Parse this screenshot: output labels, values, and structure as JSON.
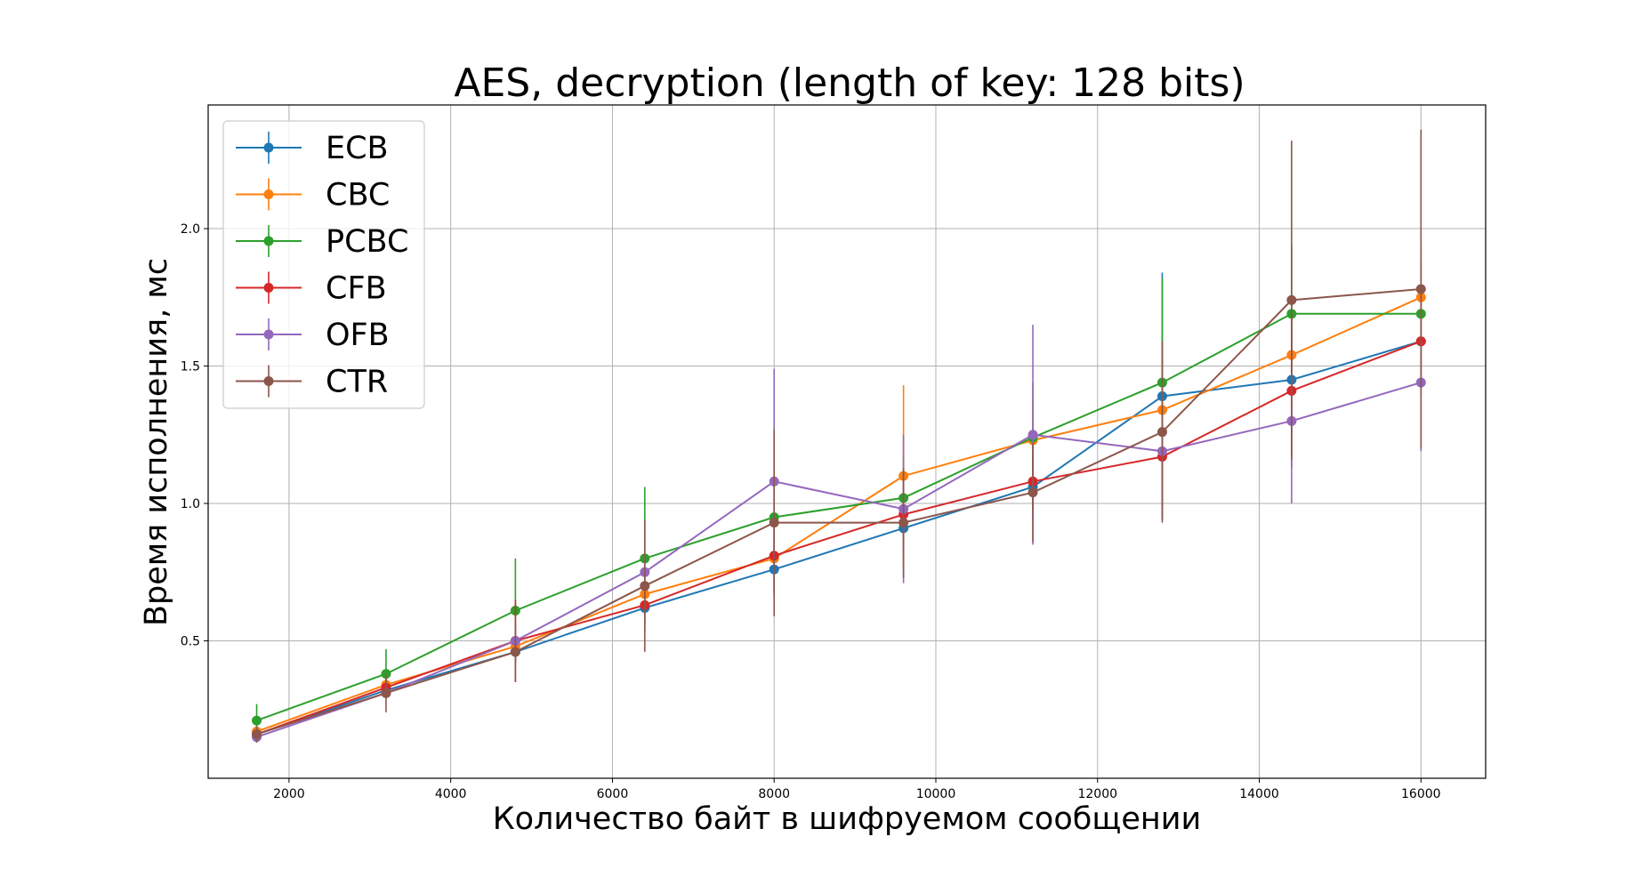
{
  "chart_data": {
    "type": "line",
    "title": "AES, decryption (length of key: 128 bits)",
    "xlabel": "Количество байт в шифруемом сообщении",
    "ylabel": "Время исполнения, мс",
    "xlim": [
      1000,
      16800
    ],
    "ylim": [
      0.0,
      2.45
    ],
    "xticks": [
      2000,
      4000,
      6000,
      8000,
      10000,
      12000,
      14000,
      16000
    ],
    "yticks": [
      0.5,
      1.0,
      1.5,
      2.0
    ],
    "xtick_labels": [
      "2000",
      "4000",
      "6000",
      "8000",
      "10000",
      "12000",
      "14000",
      "16000"
    ],
    "ytick_labels": [
      "0.5",
      "1.0",
      "1.5",
      "2.0"
    ],
    "grid": true,
    "legend_position": "top-left",
    "x": [
      1600,
      3200,
      4800,
      6400,
      8000,
      9600,
      11200,
      12800,
      14400,
      16000
    ],
    "series": [
      {
        "name": "ECB",
        "color": "#1f77b4",
        "values": [
          0.16,
          0.32,
          0.46,
          0.62,
          0.76,
          0.91,
          1.06,
          1.39,
          1.45,
          1.59
        ],
        "errors": [
          0.02,
          0.02,
          0.03,
          0.05,
          0.08,
          0.1,
          0.12,
          0.45,
          0.2,
          0.15
        ]
      },
      {
        "name": "CBC",
        "color": "#ff7f0e",
        "values": [
          0.17,
          0.34,
          0.48,
          0.67,
          0.8,
          1.1,
          1.23,
          1.34,
          1.54,
          1.75
        ],
        "errors": [
          0.02,
          0.03,
          0.04,
          0.06,
          0.1,
          0.33,
          0.15,
          0.18,
          0.2,
          0.2
        ]
      },
      {
        "name": "PCBC",
        "color": "#2ca02c",
        "values": [
          0.21,
          0.38,
          0.61,
          0.8,
          0.95,
          1.02,
          1.24,
          1.44,
          1.69,
          1.69
        ],
        "errors": [
          0.06,
          0.09,
          0.19,
          0.26,
          0.12,
          0.15,
          0.2,
          0.38,
          0.25,
          0.2
        ]
      },
      {
        "name": "CFB",
        "color": "#d62728",
        "values": [
          0.16,
          0.33,
          0.5,
          0.63,
          0.81,
          0.96,
          1.08,
          1.17,
          1.41,
          1.59
        ],
        "errors": [
          0.02,
          0.03,
          0.15,
          0.1,
          0.15,
          0.12,
          0.1,
          0.22,
          0.28,
          0.2
        ]
      },
      {
        "name": "OFB",
        "color": "#9467bd",
        "values": [
          0.15,
          0.31,
          0.5,
          0.75,
          1.08,
          0.98,
          1.25,
          1.19,
          1.3,
          1.44
        ],
        "errors": [
          0.02,
          0.02,
          0.05,
          0.19,
          0.41,
          0.27,
          0.4,
          0.25,
          0.3,
          0.25
        ]
      },
      {
        "name": "CTR",
        "color": "#8c564b",
        "values": [
          0.16,
          0.31,
          0.46,
          0.7,
          0.93,
          0.93,
          1.04,
          1.26,
          1.74,
          1.78
        ],
        "errors": [
          0.03,
          0.07,
          0.11,
          0.24,
          0.34,
          0.2,
          0.18,
          0.33,
          0.58,
          0.58
        ]
      }
    ]
  }
}
